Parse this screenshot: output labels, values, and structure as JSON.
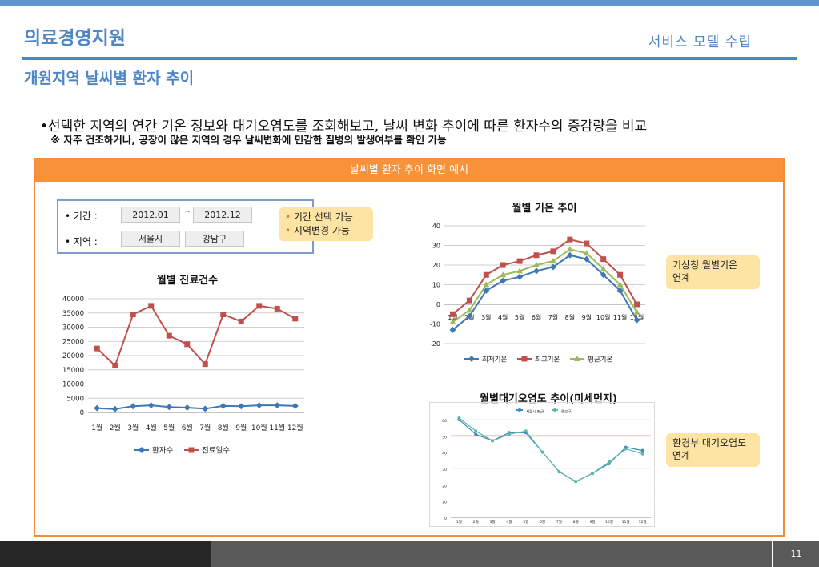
{
  "header": {
    "title": "의료경영지원",
    "section": "서비스 모델 수립"
  },
  "subtitle": "개원지역 날씨별 환자 추이",
  "bullet": "•선택한 지역의 연간 기온 정보와 대기오염도를 조회해보고, 날씨 변화 추이에 따른 환자수의 증감량을 비교",
  "note": "※ 자주 건조하거나, 공장이 많은 지역의 경우 날씨변화에 민감한 질병의 발생여부를 확인 가능",
  "panel": {
    "title": "날씨별 환자 추이 화면 예시"
  },
  "filter": {
    "period_label": "• 기간 :",
    "period_from": "2012.01",
    "period_sep": "~",
    "period_to": "2012.12",
    "region_label": "• 지역 :",
    "region_city": "서울시",
    "region_district": "강남구"
  },
  "callouts": {
    "filter_line1": "기간 선택 가능",
    "filter_line2": "지역변경 가능",
    "temp_line1": "기상청 월별기온",
    "temp_line2": "연계",
    "air_line1": "환경부 대기오염도",
    "air_line2": "연계"
  },
  "chart_data": [
    {
      "type": "line",
      "title": "월별 진료건수",
      "categories": [
        "1월",
        "2월",
        "3월",
        "4월",
        "5월",
        "6월",
        "7월",
        "8월",
        "9월",
        "10월",
        "11월",
        "12월"
      ],
      "ylim": [
        0,
        40000
      ],
      "yticks": [
        "40000",
        "35000",
        "30000",
        "25000",
        "20000",
        "15000",
        "10000",
        "5000",
        "0"
      ],
      "grid": true,
      "legend": "bottom",
      "series": [
        {
          "name": "환자수",
          "color": "#3f78b5",
          "marker": "diamond",
          "values": [
            1500,
            1200,
            2200,
            2500,
            1900,
            1700,
            1300,
            2300,
            2200,
            2500,
            2500,
            2300
          ]
        },
        {
          "name": "진료일수",
          "color": "#c0504d",
          "marker": "square",
          "values": [
            22500,
            16500,
            34500,
            37500,
            27000,
            24000,
            17000,
            34500,
            32000,
            37500,
            36500,
            33000
          ]
        }
      ]
    },
    {
      "type": "line",
      "title": "월별 기온 추이",
      "categories": [
        "1월",
        "2월",
        "3월",
        "4월",
        "5월",
        "6월",
        "7월",
        "8월",
        "9월",
        "10월",
        "11월",
        "12월"
      ],
      "ylim": [
        -20,
        40
      ],
      "yticks": [
        "40",
        "30",
        "20",
        "10",
        "0",
        "-10",
        "-20"
      ],
      "grid": true,
      "legend": "bottom",
      "series": [
        {
          "name": "최저기온",
          "color": "#3f78b5",
          "marker": "diamond",
          "values": [
            -13,
            -6,
            7,
            12,
            14,
            17,
            19,
            25,
            23,
            15,
            7,
            -8
          ]
        },
        {
          "name": "최고기온",
          "color": "#c0504d",
          "marker": "square",
          "values": [
            -5,
            2,
            15,
            20,
            22,
            25,
            27,
            33,
            31,
            23,
            15,
            0
          ]
        },
        {
          "name": "평균기온",
          "color": "#9bbb59",
          "marker": "triangle",
          "values": [
            -9,
            -3,
            10,
            15,
            17,
            20,
            22,
            28,
            26,
            18,
            10,
            -4
          ]
        }
      ]
    },
    {
      "type": "line",
      "title": "월별대기오염도 추이(미세먼지)",
      "categories": [
        "1월",
        "2월",
        "3월",
        "4월",
        "5월",
        "6월",
        "7월",
        "8월",
        "9월",
        "10월",
        "11월",
        "12월"
      ],
      "ylim": [
        0,
        60
      ],
      "yticks": [
        "60",
        "50",
        "40",
        "30",
        "20",
        "10",
        "0"
      ],
      "threshold": {
        "value": 50,
        "color": "#f08080"
      },
      "legend": "top",
      "series": [
        {
          "name": "서울시 평균",
          "color": "#3c8dbc",
          "values": [
            60,
            51,
            47,
            52,
            52,
            40,
            28,
            22,
            27,
            33,
            43,
            41
          ]
        },
        {
          "name": "종로구",
          "color": "#5cb8a8",
          "values": [
            61,
            53,
            47,
            51,
            53,
            40,
            28,
            22,
            27,
            34,
            42,
            39
          ]
        }
      ]
    }
  ],
  "footer": {
    "page": "11"
  }
}
